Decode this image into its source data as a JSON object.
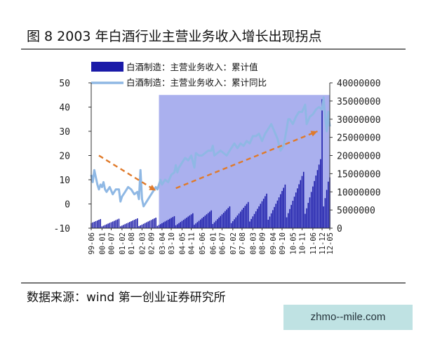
{
  "figure": {
    "title": "图 8   2003 年白酒行业主营业务收入增长出现拐点",
    "source": "数据来源：wind 第一创业证券研究所",
    "watermark": "zhmo--mile.com"
  },
  "colors": {
    "bars": "#1a1aa8",
    "line": "#8fb8e4",
    "highlight": "#aab0ee",
    "trend_arrow": "#e07a2a"
  },
  "chart_data": {
    "type": "bar+line",
    "title": "",
    "legend": {
      "placement": "top",
      "entries": [
        "白酒制造：主营业务收入：累计值",
        "白酒制造：主营业务收入：累计同比"
      ]
    },
    "y_left": {
      "ylim": [
        -10,
        50
      ],
      "ticks": [
        "50",
        "40",
        "30",
        "20",
        "10",
        "0",
        "-10"
      ]
    },
    "y_right": {
      "ylim": [
        0,
        40000000
      ],
      "ticks": [
        "40000000",
        "35000000",
        "30000000",
        "25000000",
        "20000000",
        "15000000",
        "10000000",
        "5000000",
        "0"
      ]
    },
    "x_tick_labels": [
      "99-06",
      "00-01",
      "00-07",
      "01-02",
      "01-08",
      "02-03",
      "02-09",
      "03-04",
      "03-10",
      "04-05",
      "04-11",
      "05-06",
      "06-01",
      "06-07",
      "07-02",
      "07-08",
      "08-03",
      "08-09",
      "09-04",
      "09-10",
      "10-05",
      "10-11",
      "11-06",
      "11-12",
      "12-05"
    ],
    "x_range": [
      "1999-06",
      "2012-05"
    ],
    "highlight_region": {
      "from": "2003-02",
      "to": "2012-05",
      "ymax_left": 45
    },
    "annotations": [
      {
        "type": "dashed-arrow",
        "from": [
          "1999-11",
          20
        ],
        "to": [
          "2002-12",
          5.5
        ]
      },
      {
        "type": "dashed-arrow",
        "from": [
          "2004-01",
          6.5
        ],
        "to": [
          "2011-09",
          30
        ]
      }
    ],
    "series": [
      {
        "name": "白酒制造：主营业务收入：累计值",
        "kind": "bar",
        "axis": "right",
        "yearly_peaks": [
          2500000,
          2600000,
          2700000,
          2900000,
          3300000,
          4100000,
          4900000,
          6000000,
          7200000,
          9500000,
          12000000,
          15500000,
          20500000,
          31000000
        ],
        "first_month": "1999-06",
        "late_peak": 35500000,
        "last_value": 14000000
      },
      {
        "name": "白酒制造：主营业务收入：累计同比",
        "kind": "line",
        "axis": "left",
        "points": [
          [
            "1999-06",
            12
          ],
          [
            "1999-07",
            9
          ],
          [
            "1999-08",
            14
          ],
          [
            "1999-09",
            11
          ],
          [
            "1999-10",
            8
          ],
          [
            "1999-11",
            6
          ],
          [
            "1999-12",
            8
          ],
          [
            "2000-01",
            7
          ],
          [
            "2000-02",
            9
          ],
          [
            "2000-03",
            6
          ],
          [
            "2000-04",
            5
          ],
          [
            "2000-06",
            7
          ],
          [
            "2000-08",
            4
          ],
          [
            "2000-10",
            6
          ],
          [
            "2000-12",
            6
          ],
          [
            "2001-01",
            1
          ],
          [
            "2001-02",
            3
          ],
          [
            "2001-04",
            5
          ],
          [
            "2001-06",
            7
          ],
          [
            "2001-08",
            6
          ],
          [
            "2001-10",
            4
          ],
          [
            "2001-12",
            5
          ],
          [
            "2002-01",
            2
          ],
          [
            "2002-02",
            14
          ],
          [
            "2002-03",
            2
          ],
          [
            "2002-04",
            -1
          ],
          [
            "2002-06",
            1
          ],
          [
            "2002-08",
            3
          ],
          [
            "2002-10",
            5
          ],
          [
            "2002-12",
            7
          ],
          [
            "2003-01",
            6
          ],
          [
            "2003-02",
            8
          ],
          [
            "2003-03",
            10
          ],
          [
            "2003-04",
            8
          ],
          [
            "2003-06",
            10
          ],
          [
            "2003-08",
            9
          ],
          [
            "2003-10",
            12
          ],
          [
            "2003-12",
            13
          ],
          [
            "2004-01",
            16
          ],
          [
            "2004-02",
            13
          ],
          [
            "2004-03",
            15
          ],
          [
            "2004-05",
            17
          ],
          [
            "2004-07",
            19
          ],
          [
            "2004-09",
            18
          ],
          [
            "2004-11",
            20
          ],
          [
            "2005-01",
            15
          ],
          [
            "2005-02",
            21
          ],
          [
            "2005-04",
            20
          ],
          [
            "2005-06",
            20
          ],
          [
            "2005-08",
            21
          ],
          [
            "2005-10",
            22
          ],
          [
            "2005-12",
            22
          ],
          [
            "2006-01",
            24
          ],
          [
            "2006-02",
            20
          ],
          [
            "2006-04",
            21
          ],
          [
            "2006-06",
            22
          ],
          [
            "2006-08",
            21
          ],
          [
            "2006-10",
            20
          ],
          [
            "2006-12",
            22
          ],
          [
            "2007-01",
            23
          ],
          [
            "2007-03",
            25
          ],
          [
            "2007-05",
            23
          ],
          [
            "2007-07",
            25
          ],
          [
            "2007-09",
            24
          ],
          [
            "2007-11",
            26
          ],
          [
            "2008-01",
            25
          ],
          [
            "2008-03",
            28
          ],
          [
            "2008-05",
            28
          ],
          [
            "2008-07",
            29
          ],
          [
            "2008-09",
            26
          ],
          [
            "2008-11",
            29
          ],
          [
            "2009-01",
            31
          ],
          [
            "2009-03",
            33
          ],
          [
            "2009-05",
            30
          ],
          [
            "2009-07",
            27
          ],
          [
            "2009-09",
            22
          ],
          [
            "2009-11",
            24
          ],
          [
            "2010-01",
            31
          ],
          [
            "2010-02",
            35
          ],
          [
            "2010-03",
            35
          ],
          [
            "2010-05",
            33
          ],
          [
            "2010-07",
            36
          ],
          [
            "2010-09",
            38
          ],
          [
            "2010-11",
            38
          ],
          [
            "2011-01",
            41
          ],
          [
            "2011-02",
            33
          ],
          [
            "2011-04",
            36
          ],
          [
            "2011-06",
            37
          ],
          [
            "2011-08",
            39
          ],
          [
            "2011-10",
            40
          ],
          [
            "2011-12",
            39
          ],
          [
            "2012-01",
            44
          ],
          [
            "2012-02",
            36
          ],
          [
            "2012-03",
            30
          ],
          [
            "2012-04",
            38
          ],
          [
            "2012-05",
            32
          ]
        ]
      }
    ]
  }
}
